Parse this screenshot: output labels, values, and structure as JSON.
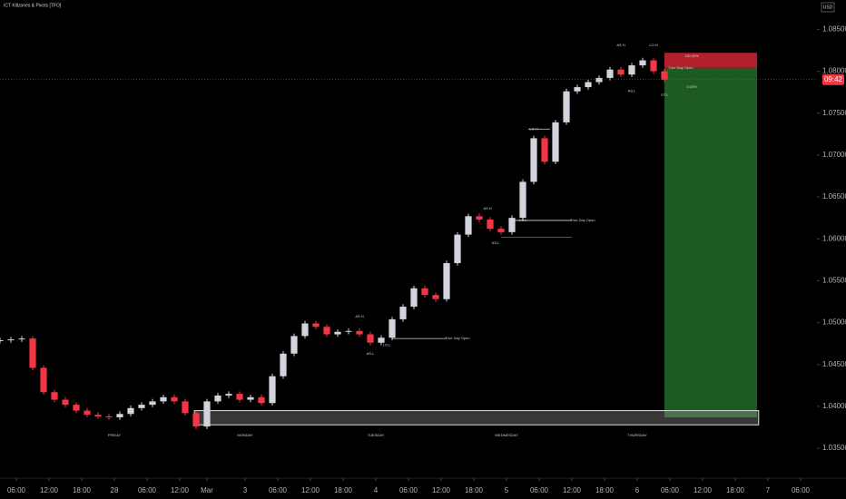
{
  "chart_data": {
    "type": "candlestick",
    "title": "ICT Killzones & Pivots [TFO]",
    "currency": "USD",
    "price_label": "09:42",
    "up_color": "#d1d4dc",
    "down_color": "#f23645",
    "x": [
      0,
      2,
      4,
      6,
      8,
      10,
      12,
      14,
      16,
      18,
      20,
      22,
      24,
      26,
      28,
      30,
      32,
      34,
      36,
      38,
      40,
      42,
      44,
      46,
      48,
      50,
      52,
      54,
      56,
      58,
      60,
      62,
      64,
      66,
      68,
      70,
      72,
      74,
      76,
      78,
      80,
      82,
      84,
      86,
      88,
      90,
      92,
      94,
      96,
      98,
      100,
      102,
      104,
      106,
      108,
      110,
      112,
      114,
      116,
      118,
      120,
      122
    ],
    "open": [
      1.0478,
      1.0479,
      1.048,
      1.0481,
      1.0446,
      1.0417,
      1.0408,
      1.0402,
      1.0395,
      1.039,
      1.0388,
      1.0387,
      1.0391,
      1.0398,
      1.0402,
      1.0406,
      1.0411,
      1.0406,
      1.0392,
      1.0376,
      1.0406,
      1.0413,
      1.0415,
      1.0408,
      1.0411,
      1.0404,
      1.0436,
      1.0463,
      1.0484,
      1.0499,
      1.0495,
      1.0486,
      1.0489,
      1.049,
      1.0486,
      1.0476,
      1.0482,
      1.0504,
      1.0519,
      1.0541,
      1.0533,
      1.0528,
      1.0571,
      1.0605,
      1.0627,
      1.0623,
      1.0612,
      1.0608,
      1.0625,
      1.0668,
      1.072,
      1.0692,
      1.0739,
      1.0776,
      1.0781,
      1.0787,
      1.0792,
      1.0802,
      1.0796,
      1.0807,
      1.0813,
      1.08
    ],
    "high": [
      1.0482,
      1.0483,
      1.0484,
      1.0484,
      1.0449,
      1.042,
      1.0411,
      1.0405,
      1.0398,
      1.0393,
      1.0391,
      1.0394,
      1.0401,
      1.0405,
      1.0409,
      1.0414,
      1.0414,
      1.0409,
      1.0395,
      1.0409,
      1.0416,
      1.0418,
      1.0418,
      1.0414,
      1.0414,
      1.0439,
      1.0466,
      1.0487,
      1.0502,
      1.0502,
      1.0498,
      1.0492,
      1.0493,
      1.0493,
      1.0489,
      1.0485,
      1.0507,
      1.0522,
      1.0544,
      1.0544,
      1.0536,
      1.0574,
      1.0608,
      1.063,
      1.063,
      1.0626,
      1.0615,
      1.0628,
      1.0671,
      1.0723,
      1.0723,
      1.0742,
      1.0779,
      1.0784,
      1.079,
      1.0795,
      1.0805,
      1.0805,
      1.081,
      1.0816,
      1.0816,
      1.0803
    ],
    "low": [
      1.0475,
      1.0476,
      1.0477,
      1.0443,
      1.0414,
      1.0405,
      1.0399,
      1.0392,
      1.0387,
      1.0385,
      1.0384,
      1.0384,
      1.0388,
      1.0395,
      1.0399,
      1.0403,
      1.0403,
      1.0389,
      1.0373,
      1.0373,
      1.0403,
      1.041,
      1.0405,
      1.0405,
      1.0401,
      1.0401,
      1.0433,
      1.046,
      1.0481,
      1.0492,
      1.0483,
      1.0483,
      1.0486,
      1.0483,
      1.0473,
      1.0473,
      1.0479,
      1.0501,
      1.0516,
      1.053,
      1.0525,
      1.0525,
      1.0568,
      1.0602,
      1.062,
      1.0609,
      1.0605,
      1.0605,
      1.0622,
      1.0665,
      1.0689,
      1.0689,
      1.0736,
      1.0773,
      1.0778,
      1.0784,
      1.0789,
      1.0793,
      1.0793,
      1.0804,
      1.0797,
      1.0787
    ],
    "close": [
      1.0479,
      1.048,
      1.0481,
      1.0446,
      1.0417,
      1.0408,
      1.0402,
      1.0395,
      1.039,
      1.0388,
      1.0387,
      1.0391,
      1.0398,
      1.0402,
      1.0406,
      1.0411,
      1.0406,
      1.0392,
      1.0376,
      1.0406,
      1.0413,
      1.0415,
      1.0408,
      1.0411,
      1.0404,
      1.0436,
      1.0463,
      1.0484,
      1.0499,
      1.0495,
      1.0486,
      1.0489,
      1.049,
      1.0486,
      1.0476,
      1.0482,
      1.0504,
      1.0519,
      1.0541,
      1.0533,
      1.0528,
      1.0571,
      1.0605,
      1.0627,
      1.0623,
      1.0612,
      1.0608,
      1.0625,
      1.0668,
      1.072,
      1.0692,
      1.0739,
      1.0776,
      1.0781,
      1.0787,
      1.0792,
      1.0802,
      1.0796,
      1.0807,
      1.0813,
      1.08,
      1.079
    ],
    "xlim": [
      0,
      150
    ],
    "xticks": [
      {
        "value": 3,
        "label": "06:00"
      },
      {
        "value": 9,
        "label": "12:00"
      },
      {
        "value": 15,
        "label": "18:00"
      },
      {
        "value": 21,
        "label": "28"
      },
      {
        "value": 27,
        "label": "06:00"
      },
      {
        "value": 33,
        "label": "12:00"
      },
      {
        "value": 38,
        "label": "Mar"
      },
      {
        "value": 45,
        "label": "3"
      },
      {
        "value": 51,
        "label": "06:00"
      },
      {
        "value": 57,
        "label": "12:00"
      },
      {
        "value": 63,
        "label": "18:00"
      },
      {
        "value": 69,
        "label": "4"
      },
      {
        "value": 75,
        "label": "06:00"
      },
      {
        "value": 81,
        "label": "12:00"
      },
      {
        "value": 87,
        "label": "18:00"
      },
      {
        "value": 93,
        "label": "5"
      },
      {
        "value": 99,
        "label": "06:00"
      },
      {
        "value": 105,
        "label": "12:00"
      },
      {
        "value": 111,
        "label": "18:00"
      },
      {
        "value": 117,
        "label": "6"
      },
      {
        "value": 123,
        "label": "06:00"
      },
      {
        "value": 129,
        "label": "12:00"
      },
      {
        "value": 135,
        "label": "18:00"
      },
      {
        "value": 141,
        "label": "7"
      },
      {
        "value": 147,
        "label": "06:00"
      }
    ],
    "ylim": [
      1.0322,
      1.0885
    ],
    "yticks": [
      {
        "value": 1.085,
        "label": "1.08500"
      },
      {
        "value": 1.08,
        "label": "1.08000"
      },
      {
        "value": 1.075,
        "label": "1.07500"
      },
      {
        "value": 1.07,
        "label": "1.07000"
      },
      {
        "value": 1.065,
        "label": "1.06500"
      },
      {
        "value": 1.06,
        "label": "1.06000"
      },
      {
        "value": 1.055,
        "label": "1.05500"
      },
      {
        "value": 1.05,
        "label": "1.05000"
      },
      {
        "value": 1.045,
        "label": "1.04500"
      },
      {
        "value": 1.04,
        "label": "1.04000"
      },
      {
        "value": 1.035,
        "label": "1.03500"
      }
    ],
    "sessions": [
      {
        "label": "FRIDAY",
        "x": 21
      },
      {
        "label": "MONDAY",
        "x": 45
      },
      {
        "label": "TUESDAY",
        "x": 69
      },
      {
        "label": "WEDNESDAY",
        "x": 93
      },
      {
        "label": "THURSDAY",
        "x": 117
      }
    ],
    "annotations": [
      {
        "text": "AS.H",
        "x": 66,
        "y": 1.0507
      },
      {
        "text": "AS.L",
        "x": 68,
        "y": 1.0463
      },
      {
        "text": "LO.L",
        "x": 71,
        "y": 1.0473
      },
      {
        "text": "True Day Open",
        "x": 84,
        "y": 1.0481
      },
      {
        "text": "AS.H",
        "x": 89.5,
        "y": 1.0636
      },
      {
        "text": "AS.L",
        "x": 91,
        "y": 1.0595
      },
      {
        "text": "LO.L",
        "x": 96,
        "y": 1.0622
      },
      {
        "text": "True Day Open",
        "x": 107,
        "y": 1.0622
      },
      {
        "text": "LO.H",
        "x": 98,
        "y": 1.0731
      },
      {
        "text": "AS.H",
        "x": 114,
        "y": 1.0831
      },
      {
        "text": "LO.H",
        "x": 120,
        "y": 1.0831
      },
      {
        "text": "AS.L",
        "x": 116,
        "y": 1.0776
      },
      {
        "text": "LO.L",
        "x": 122,
        "y": 1.0772
      },
      {
        "text": "100.00%",
        "x": 127,
        "y": 1.0818
      },
      {
        "text": "True Day Open",
        "x": 125,
        "y": 1.0804
      },
      {
        "text": "0.00%",
        "x": 127,
        "y": 1.0781
      }
    ],
    "levels": [
      {
        "y": 1.0481,
        "x": [
          72,
          82
        ],
        "color": "#d1d4dc"
      },
      {
        "y": 1.0622,
        "x": [
          94,
          105
        ],
        "color": "#d1d4dc"
      },
      {
        "y": 1.0602,
        "x": [
          92,
          105
        ],
        "color": "#f23645"
      },
      {
        "y": 1.0731,
        "x": [
          97,
          101
        ],
        "color": "#d1d4dc"
      }
    ],
    "position": {
      "entry": 1.0804,
      "stop": 1.0822,
      "target": 1.0387,
      "x": [
        122,
        139
      ],
      "stop_color": "#b2202c",
      "target_color": "#1e5b22"
    },
    "zone": {
      "y": [
        1.0378,
        1.0395
      ],
      "x": [
        35.7,
        139.3
      ],
      "color": "#9e9e9e"
    }
  }
}
